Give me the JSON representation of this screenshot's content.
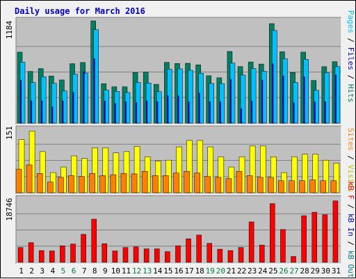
{
  "title": "Daily usage for March 2016",
  "colors": {
    "background": "#f0f0f0",
    "plot_bg": "#c0c0c0",
    "grid": "#808080",
    "pages": "#00c0ff",
    "files": "#0000c0",
    "hits": "#008060",
    "visits": "#ffff00",
    "sites": "#ff8000",
    "kb_in": "#0000c0",
    "kb_out": "#008080",
    "kb_f": "#ff0000",
    "day_normal": "#000000",
    "day_weekend": "#008040"
  },
  "y_max_labels": {
    "hits": "1184",
    "visits": "151",
    "kbytes": "18746"
  },
  "legend": {
    "top": {
      "pages": "Pages",
      "files": "Files",
      "hits": "Hits",
      "sep1": " / ",
      "sep2": " / "
    },
    "mid": {
      "sites": "Sites",
      "visits": "Visits",
      "sep": " / "
    },
    "bot": {
      "kbf": "kB F",
      "kbin": "kB In",
      "kbout": "kB Out",
      "sep1": " / ",
      "sep2": " / "
    }
  },
  "chart_data": {
    "type": "bar",
    "title": "Daily usage for March 2016",
    "categories": [
      "1",
      "2",
      "3",
      "4",
      "5",
      "6",
      "7",
      "8",
      "9",
      "10",
      "11",
      "12",
      "13",
      "14",
      "15",
      "16",
      "17",
      "18",
      "19",
      "20",
      "21",
      "22",
      "23",
      "24",
      "25",
      "26",
      "27",
      "28",
      "29",
      "30",
      "31"
    ],
    "weekend_days": [
      "5",
      "6",
      "12",
      "13",
      "19",
      "20",
      "26",
      "27"
    ],
    "panels": [
      {
        "name": "hits_files_pages",
        "ylim": [
          0,
          1184
        ],
        "series": [
          {
            "name": "Hits",
            "values": [
              822,
              599,
              632,
              546,
              500,
              688,
              702,
              1184,
              457,
              421,
              421,
              585,
              591,
              450,
              704,
              691,
              693,
              675,
              549,
              525,
              830,
              655,
              708,
              684,
              1152,
              826,
              586,
              822,
              494,
              654,
              712
            ]
          },
          {
            "name": "Files",
            "values": [
              500,
              260,
              260,
              190,
              260,
              360,
              600,
              750,
              260,
              230,
              250,
              240,
              260,
              250,
              320,
              320,
              250,
              350,
              250,
              250,
              510,
              170,
              260,
              500,
              690,
              550,
              240,
              540,
              250,
              250,
              560
            ]
          },
          {
            "name": "Pages",
            "values": [
              755,
              519,
              586,
              511,
              421,
              615,
              628,
              1130,
              431,
              416,
              403,
              520,
              513,
              414,
              673,
              677,
              660,
              626,
              508,
              507,
              743,
              605,
              681,
              651,
              1121,
              793,
              519,
              787,
              428,
              632,
              704
            ]
          }
        ]
      },
      {
        "name": "visits_sites",
        "ylim": [
          0,
          151
        ],
        "series": [
          {
            "name": "Visits",
            "values": [
              124,
              144,
              96,
              47,
              60,
              86,
              80,
              105,
              105,
              93,
              96,
              108,
              84,
              74,
              76,
              107,
              122,
              122,
              107,
              84,
              60,
              84,
              109,
              109,
              84,
              47,
              84,
              90,
              90,
              76,
              69
            ]
          },
          {
            "name": "Sites",
            "values": [
              55,
              65,
              45,
              25,
              36,
              40,
              38,
              45,
              40,
              42,
              45,
              44,
              50,
              40,
              40,
              46,
              50,
              46,
              38,
              36,
              33,
              50,
              40,
              36,
              36,
              28,
              28,
              28,
              30,
              28,
              28
            ]
          }
        ]
      },
      {
        "name": "kbytes",
        "ylim": [
          0,
          18746
        ],
        "series": [
          {
            "name": "kB F",
            "values": [
              4300,
              5700,
              3400,
              3300,
              4800,
              5300,
              8100,
              12500,
              5400,
              3300,
              4300,
              4500,
              3900,
              3900,
              3100,
              4800,
              6800,
              7900,
              5500,
              3800,
              3400,
              4300,
              11700,
              5000,
              17000,
              9500,
              1700,
              13500,
              14500,
              13800,
              17800
            ]
          }
        ]
      }
    ]
  }
}
